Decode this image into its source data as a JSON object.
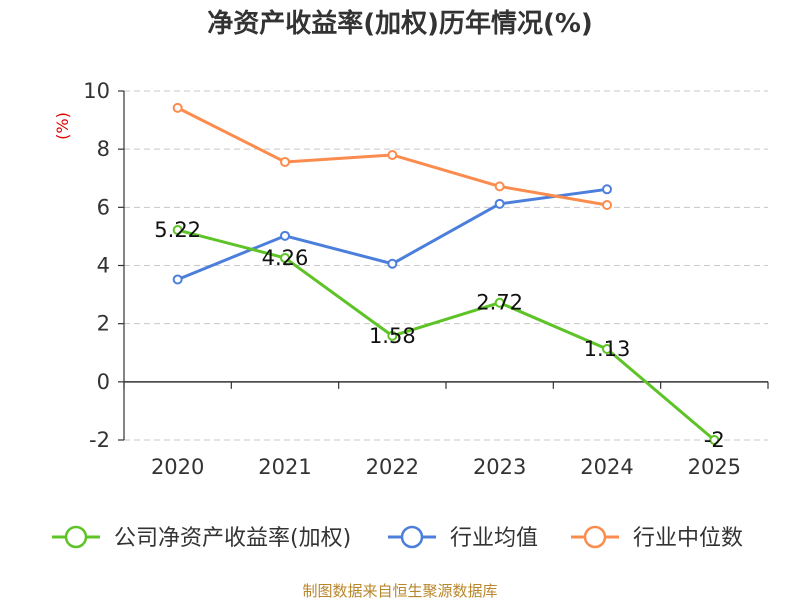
{
  "chart_data": {
    "type": "line",
    "title": "净资产收益率(加权)历年情况(%)",
    "ylabel": "(%)",
    "xlabel": "",
    "ylim": [
      -2,
      10
    ],
    "yticks": [
      -2,
      0,
      2,
      4,
      6,
      8,
      10
    ],
    "categories": [
      "2020",
      "2021",
      "2022",
      "2023",
      "2024",
      "2025"
    ],
    "series": [
      {
        "name": "公司净资产收益率(加权)",
        "color": "#5dc326",
        "values": [
          5.22,
          4.26,
          1.58,
          2.72,
          1.13,
          -2
        ],
        "labels": [
          "5.22",
          "4.26",
          "1.58",
          "2.72",
          "1.13",
          "-2"
        ]
      },
      {
        "name": "行业均值",
        "color": "#4c7fdc",
        "values": [
          3.52,
          5.02,
          4.06,
          6.12,
          6.62,
          null
        ]
      },
      {
        "name": "行业中位数",
        "color": "#fb8c4e",
        "values": [
          9.42,
          7.56,
          7.8,
          6.72,
          6.08,
          null
        ]
      }
    ],
    "legend_position": "bottom",
    "grid": true
  },
  "source": "制图数据来自恒生聚源数据库"
}
